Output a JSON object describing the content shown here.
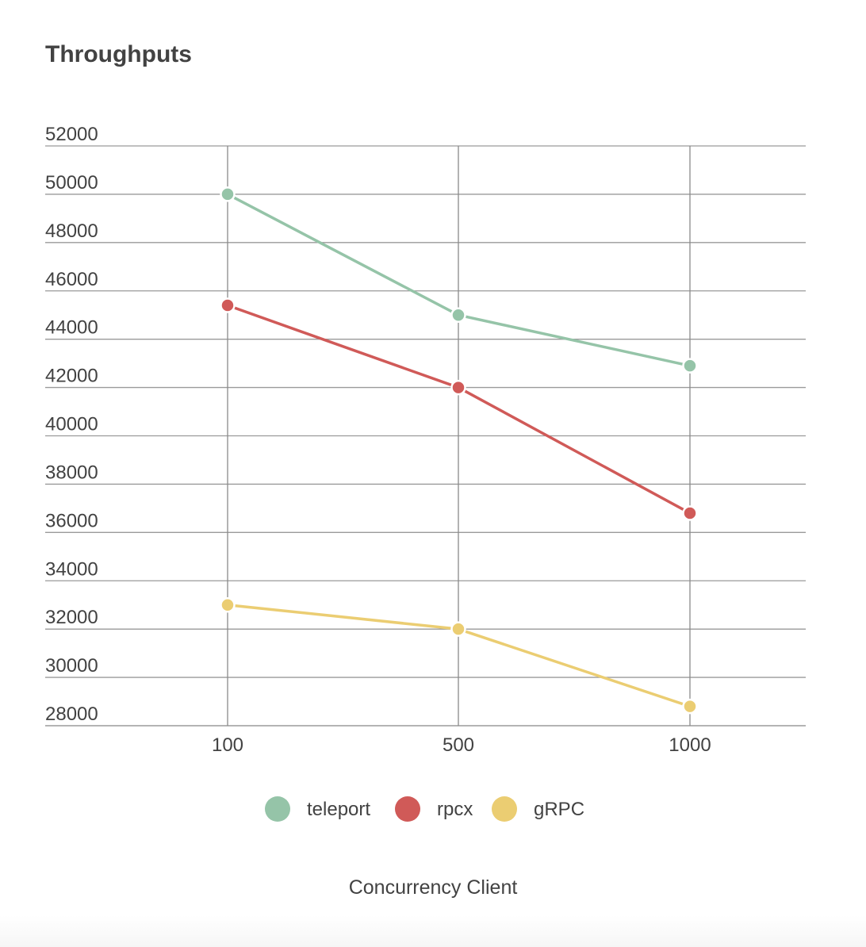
{
  "chart_data": {
    "type": "line",
    "title": "Throughputs",
    "xlabel": "Concurrency Client",
    "ylabel": "",
    "categories": [
      "100",
      "500",
      "1000"
    ],
    "y_ticks": [
      52000,
      50000,
      48000,
      46000,
      44000,
      42000,
      40000,
      38000,
      36000,
      34000,
      32000,
      30000,
      28000
    ],
    "ylim": [
      28000,
      52000
    ],
    "grid": true,
    "legend_position": "bottom",
    "series": [
      {
        "name": "teleport",
        "color": "#95c4a8",
        "values": [
          50000,
          45000,
          42900
        ]
      },
      {
        "name": "rpcx",
        "color": "#d05a58",
        "values": [
          45400,
          42000,
          36800
        ]
      },
      {
        "name": "gRPC",
        "color": "#ebcd72",
        "values": [
          33000,
          32000,
          28800
        ]
      }
    ]
  }
}
